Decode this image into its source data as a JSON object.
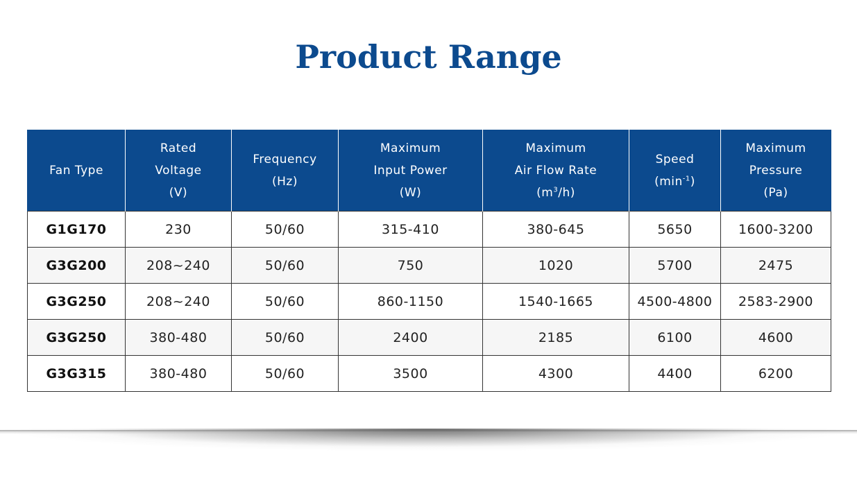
{
  "title": "Product Range",
  "colors": {
    "header_bg": "#0c4a8e",
    "title": "#0c4a8e"
  },
  "table": {
    "headers": [
      {
        "lines": [
          "Fan Type"
        ]
      },
      {
        "lines": [
          "Rated",
          "Voltage",
          "(V)"
        ]
      },
      {
        "lines": [
          "Frequency",
          "(Hz)"
        ]
      },
      {
        "lines": [
          "Maximum",
          "Input Power",
          "(W)"
        ]
      },
      {
        "lines": [
          "Maximum",
          "Air Flow Rate"
        ],
        "unit": {
          "base": "(m",
          "sup": "3",
          "tail": "/h)"
        }
      },
      {
        "lines": [
          "Speed"
        ],
        "unit": {
          "base": "(min",
          "sup": "-1",
          "tail": ")"
        }
      },
      {
        "lines": [
          "Maximum",
          "Pressure",
          "(Pa)"
        ]
      }
    ],
    "rows": [
      [
        "G1G170",
        "230",
        "50/60",
        "315-410",
        "380-645",
        "5650",
        "1600-3200"
      ],
      [
        "G3G200",
        "208~240",
        "50/60",
        "750",
        "1020",
        "5700",
        "2475"
      ],
      [
        "G3G250",
        "208~240",
        "50/60",
        "860-1150",
        "1540-1665",
        "4500-4800",
        "2583-2900"
      ],
      [
        "G3G250",
        "380-480",
        "50/60",
        "2400",
        "2185",
        "6100",
        "4600"
      ],
      [
        "G3G315",
        "380-480",
        "50/60",
        "3500",
        "4300",
        "4400",
        "6200"
      ]
    ]
  }
}
